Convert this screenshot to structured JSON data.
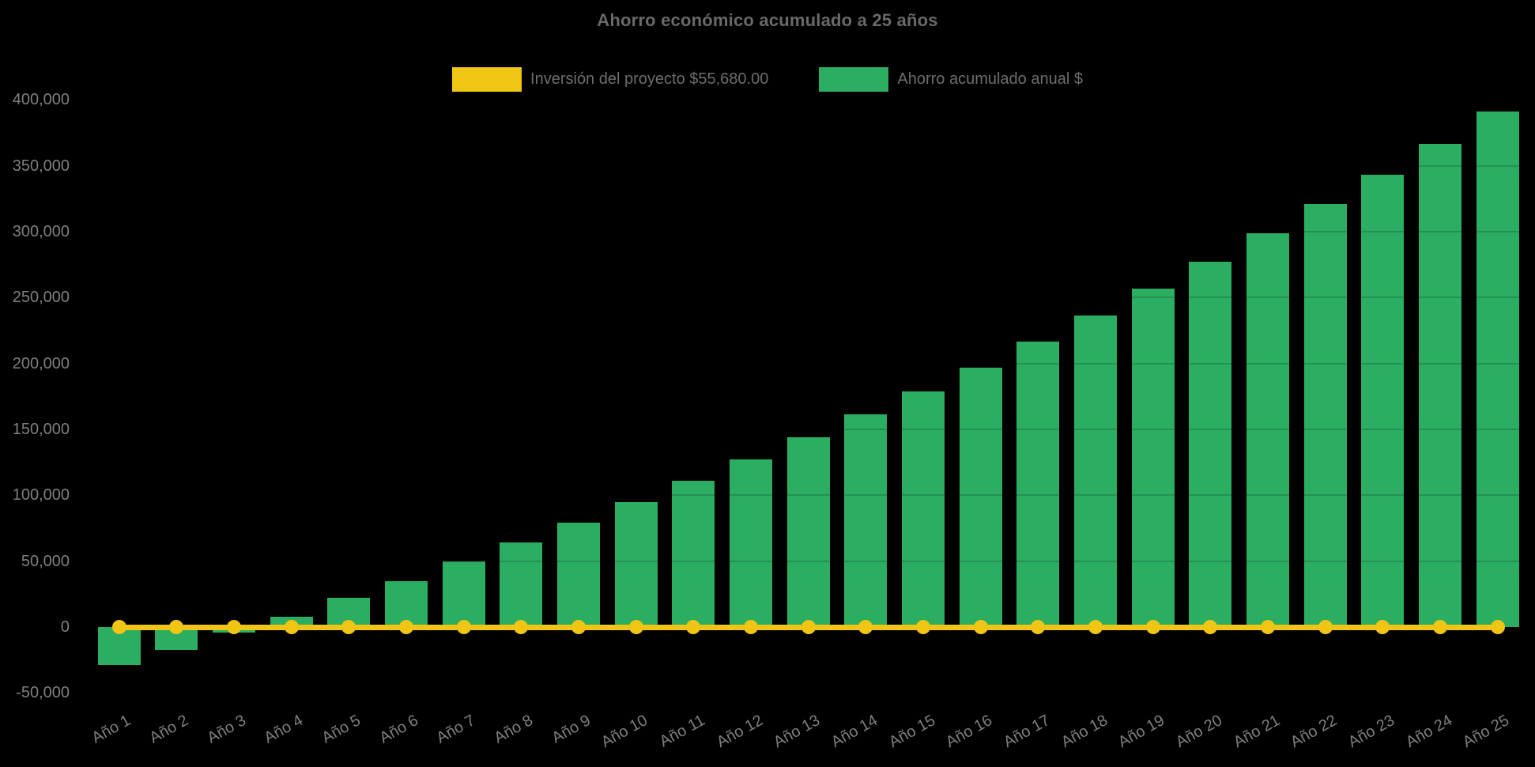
{
  "title": "Ahorro económico acumulado a 25 años",
  "legend": {
    "items": [
      {
        "label": "Inversión del proyecto $55,680.00",
        "color": "#f0c513",
        "series": "line"
      },
      {
        "label": "Ahorro acumulado anual $",
        "color": "#2bad62",
        "series": "bar"
      }
    ],
    "position": "top"
  },
  "colors": {
    "background": "#000000",
    "bar_green": "#2bad62",
    "line_yellow": "#f0c513",
    "title_text": "#696969",
    "tick_text": "#7f7f7f",
    "gridline": "rgba(0,0,0,0.16)"
  },
  "chart_data": {
    "type": "bar",
    "title": "Ahorro económico acumulado a 25 años",
    "categories": [
      "Año 1",
      "Año 2",
      "Año 3",
      "Año 4",
      "Año 5",
      "Año 6",
      "Año 7",
      "Año 8",
      "Año 9",
      "Año 10",
      "Año 11",
      "Año 12",
      "Año 13",
      "Año 14",
      "Año 15",
      "Año 16",
      "Año 17",
      "Año 18",
      "Año 19",
      "Año 20",
      "Año 21",
      "Año 22",
      "Año 23",
      "Año 24",
      "Año 25"
    ],
    "series": [
      {
        "name": "Ahorro acumulado anual $",
        "type": "bar",
        "color": "#2bad62",
        "values": [
          -29000,
          -17500,
          -4000,
          8000,
          22000,
          35000,
          50000,
          64000,
          79500,
          95000,
          111000,
          127000,
          144000,
          161500,
          179000,
          197000,
          216500,
          236500,
          257000,
          277000,
          299000,
          321000,
          343000,
          366500,
          391000
        ]
      },
      {
        "name": "Inversión del proyecto $55,680.00",
        "type": "line",
        "color": "#f0c513",
        "point_markers": true,
        "values": [
          0,
          0,
          0,
          0,
          0,
          0,
          0,
          0,
          0,
          0,
          0,
          0,
          0,
          0,
          0,
          0,
          0,
          0,
          0,
          0,
          0,
          0,
          0,
          0,
          0
        ]
      }
    ],
    "xlabel": "",
    "ylabel": "",
    "ylim": [
      -50000,
      400000
    ],
    "ytick_values": [
      400000,
      350000,
      300000,
      250000,
      200000,
      150000,
      100000,
      50000,
      0,
      -50000
    ],
    "ytick_labels": [
      "400,000",
      "350,000",
      "300,000",
      "250,000",
      "200,000",
      "150,000",
      "100,000",
      "50,000",
      "0",
      "-50,000"
    ],
    "grid": "faint horizontal",
    "legend_position": "top",
    "x_tick_rotation_deg": -29
  }
}
